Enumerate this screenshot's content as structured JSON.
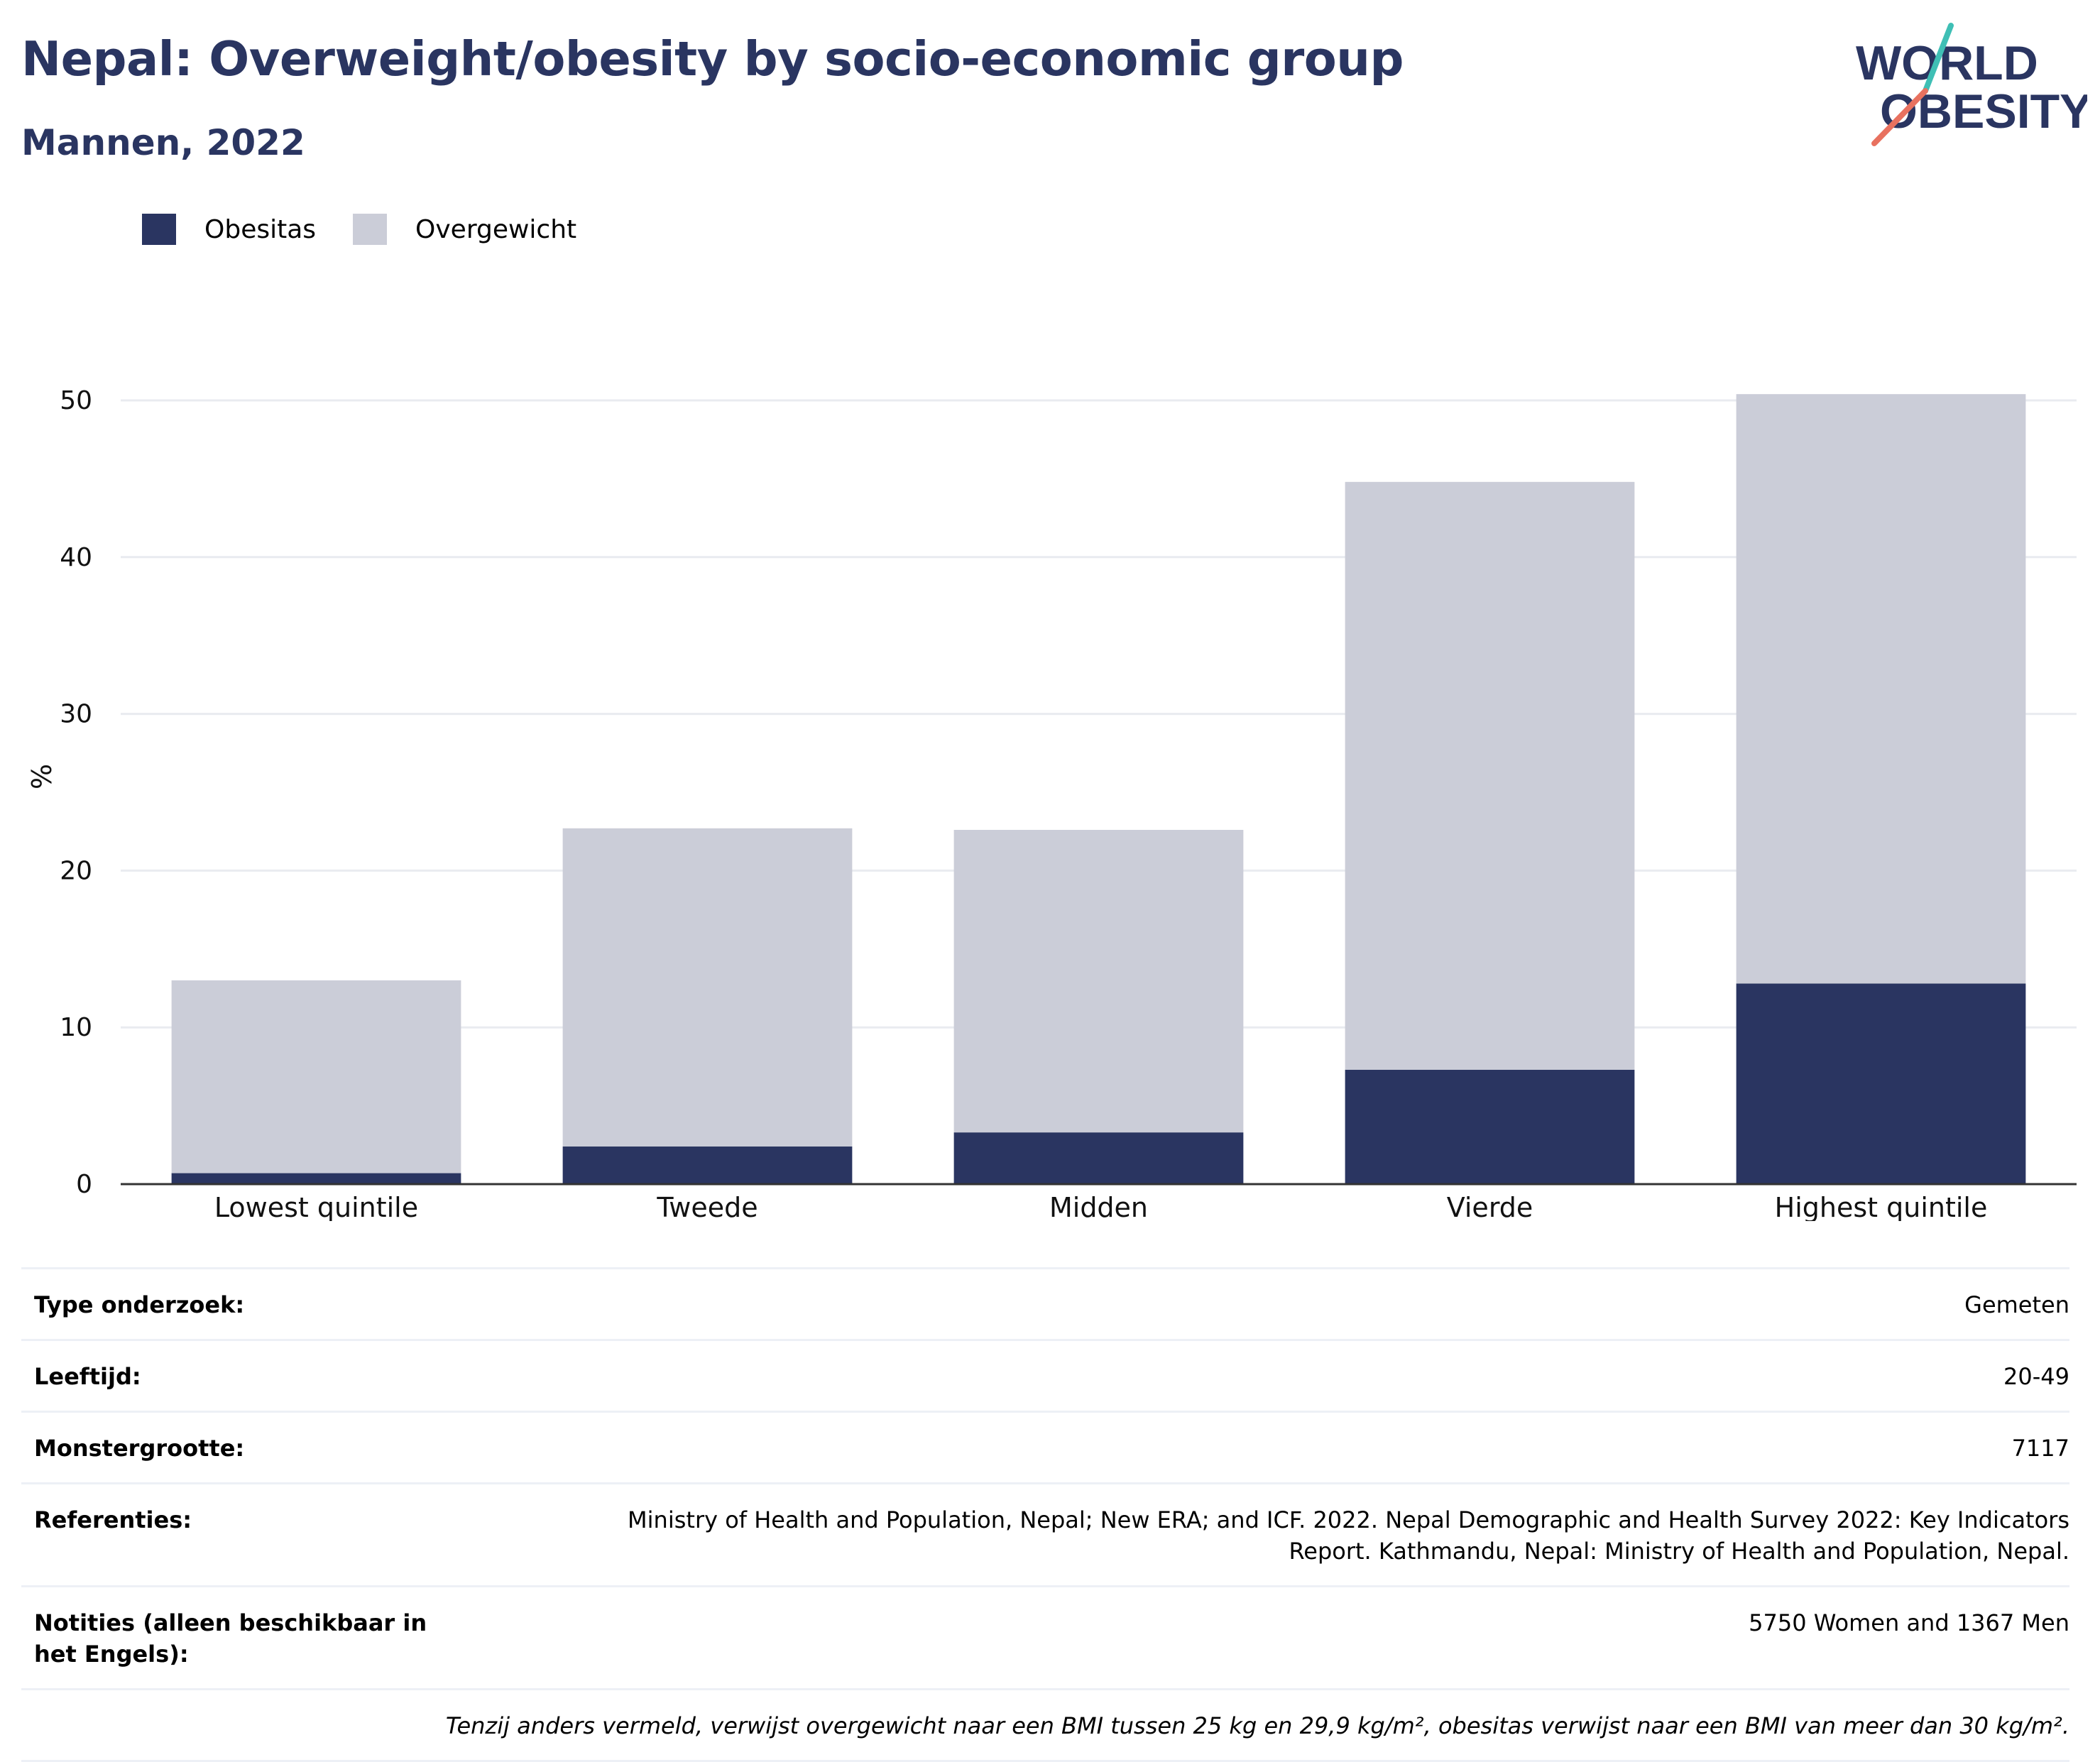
{
  "header": {
    "title": "Nepal: Overweight/obesity by socio-economic group",
    "subtitle": "Mannen, 2022"
  },
  "logo": {
    "line1": "WORLD",
    "line2": "OBESITY",
    "accent_teal": "#3fbfb5",
    "accent_coral": "#e8715f",
    "text_color": "#2a3561"
  },
  "legend": {
    "items": [
      {
        "label": "Obesitas",
        "color": "#2a3561"
      },
      {
        "label": "Overgewicht",
        "color": "#cbcdd8"
      }
    ]
  },
  "chart_data": {
    "type": "bar",
    "stacked": true,
    "categories": [
      "Lowest quintile",
      "Tweede",
      "Midden",
      "Vierde",
      "Highest quintile"
    ],
    "series": [
      {
        "name": "Obesitas",
        "color": "#2a3561",
        "values": [
          0.7,
          2.4,
          3.3,
          7.3,
          12.8
        ]
      },
      {
        "name": "Overgewicht",
        "color": "#cbcdd8",
        "values": [
          12.3,
          20.3,
          19.3,
          37.5,
          37.6
        ]
      }
    ],
    "ylabel": "%",
    "ylim": [
      0,
      52
    ],
    "yticks": [
      0,
      10,
      20,
      30,
      40,
      50
    ],
    "grid": true,
    "legend_position": "top-left"
  },
  "meta": {
    "rows": [
      {
        "label": "Type onderzoek:",
        "value": "Gemeten"
      },
      {
        "label": "Leeftijd:",
        "value": "20-49"
      },
      {
        "label": "Monstergrootte:",
        "value": "7117"
      },
      {
        "label": "Referenties:",
        "value": "Ministry of Health and Population, Nepal; New ERA; and ICF. 2022. Nepal Demographic and Health Survey 2022: Key Indicators Report. Kathmandu, Nepal: Ministry of Health and Population, Nepal."
      },
      {
        "label": "Notities (alleen beschikbaar in het Engels):",
        "value": "5750 Women and 1367 Men"
      }
    ],
    "footnote": "Tenzij anders vermeld, verwijst overgewicht naar een BMI tussen 25 kg en 29,9 kg/m², obesitas verwijst naar een BMI van meer dan 30 kg/m²."
  }
}
